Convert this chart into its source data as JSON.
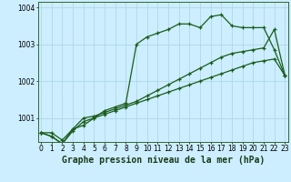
{
  "title": "Graphe pression niveau de la mer (hPa)",
  "bg_color": "#cceeff",
  "grid_color": "#b0d8e8",
  "line_color": "#1a5c1a",
  "x_values": [
    0,
    1,
    2,
    3,
    4,
    5,
    6,
    7,
    8,
    9,
    10,
    11,
    12,
    13,
    14,
    15,
    16,
    17,
    18,
    19,
    20,
    21,
    22,
    23
  ],
  "series1": [
    1000.6,
    1000.6,
    1000.4,
    1000.7,
    1000.8,
    1001.0,
    1001.2,
    1001.3,
    1001.4,
    1003.0,
    1003.2,
    1003.3,
    1003.4,
    1003.55,
    1003.55,
    1003.45,
    1003.75,
    1003.8,
    1003.5,
    1003.45,
    1003.45,
    1003.45,
    1002.85,
    1002.15
  ],
  "series2": [
    1000.6,
    1000.5,
    1000.3,
    1000.7,
    1001.0,
    1001.05,
    1001.15,
    1001.25,
    1001.35,
    1001.45,
    1001.6,
    1001.75,
    1001.9,
    1002.05,
    1002.2,
    1002.35,
    1002.5,
    1002.65,
    1002.75,
    1002.8,
    1002.85,
    1002.9,
    1003.4,
    1002.15
  ],
  "series3": [
    1000.6,
    1000.5,
    1000.3,
    1000.65,
    1000.9,
    1001.0,
    1001.1,
    1001.2,
    1001.3,
    1001.4,
    1001.5,
    1001.6,
    1001.7,
    1001.8,
    1001.9,
    1002.0,
    1002.1,
    1002.2,
    1002.3,
    1002.4,
    1002.5,
    1002.55,
    1002.6,
    1002.15
  ],
  "ylim_min": 1000.35,
  "ylim_max": 1004.15,
  "yticks": [
    1001,
    1002,
    1003,
    1004
  ],
  "xlim_min": -0.3,
  "xlim_max": 23.3,
  "title_fontsize": 7.0,
  "tick_fontsize": 5.5,
  "ylabel_fontsize": 5.5
}
